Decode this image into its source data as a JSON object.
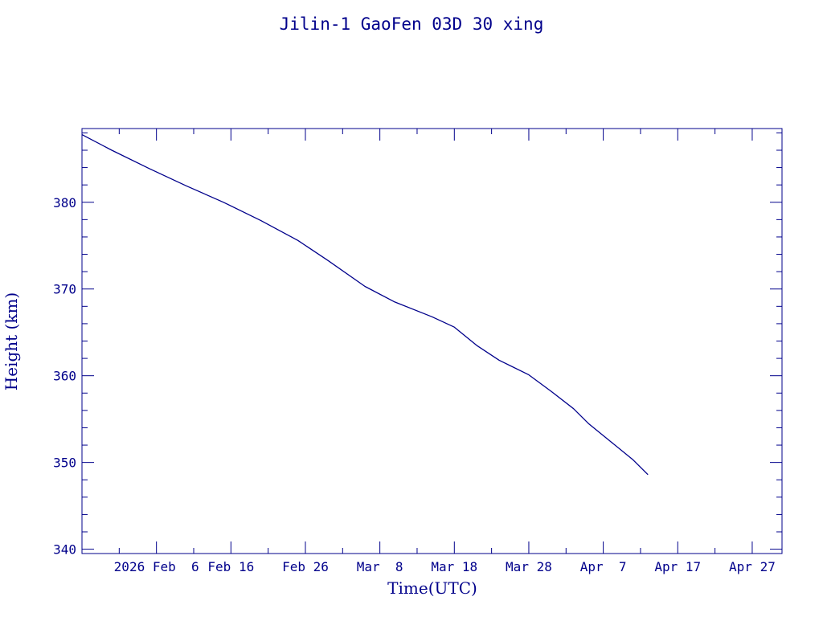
{
  "chart_data": {
    "type": "line",
    "title": "Jilin-1 GaoFen 03D 30 xing",
    "xlabel": "Time(UTC)",
    "ylabel": "Height (km)",
    "x_axis_kind": "date",
    "xlim": [
      "2026-01-27",
      "2026-05-01"
    ],
    "ylim": [
      339.5,
      388.5
    ],
    "xticks": [
      {
        "date": "2026-02-06",
        "label": "2026 Feb  6"
      },
      {
        "date": "2026-02-16",
        "label": "Feb 16"
      },
      {
        "date": "2026-02-26",
        "label": "Feb 26"
      },
      {
        "date": "2026-03-08",
        "label": "Mar  8"
      },
      {
        "date": "2026-03-18",
        "label": "Mar 18"
      },
      {
        "date": "2026-03-28",
        "label": "Mar 28"
      },
      {
        "date": "2026-04-07",
        "label": "Apr  7"
      },
      {
        "date": "2026-04-17",
        "label": "Apr 17"
      },
      {
        "date": "2026-04-27",
        "label": "Apr 27"
      }
    ],
    "yticks": [
      340,
      350,
      360,
      370,
      380
    ],
    "grid": false,
    "color": "#00008b",
    "series": [
      {
        "x": [
          "2026-01-27",
          "2026-01-31",
          "2026-02-05",
          "2026-02-10",
          "2026-02-15",
          "2026-02-20",
          "2026-02-25",
          "2026-03-01",
          "2026-03-06",
          "2026-03-10",
          "2026-03-15",
          "2026-03-18",
          "2026-03-21",
          "2026-03-24",
          "2026-03-28",
          "2026-03-31",
          "2026-04-03",
          "2026-04-05",
          "2026-04-08",
          "2026-04-11",
          "2026-04-13"
        ],
        "y": [
          387.8,
          386.0,
          383.9,
          381.9,
          380.0,
          377.9,
          375.6,
          373.3,
          370.3,
          368.5,
          366.8,
          365.6,
          363.5,
          361.8,
          360.1,
          358.2,
          356.2,
          354.5,
          352.4,
          350.3,
          348.6
        ]
      }
    ]
  }
}
